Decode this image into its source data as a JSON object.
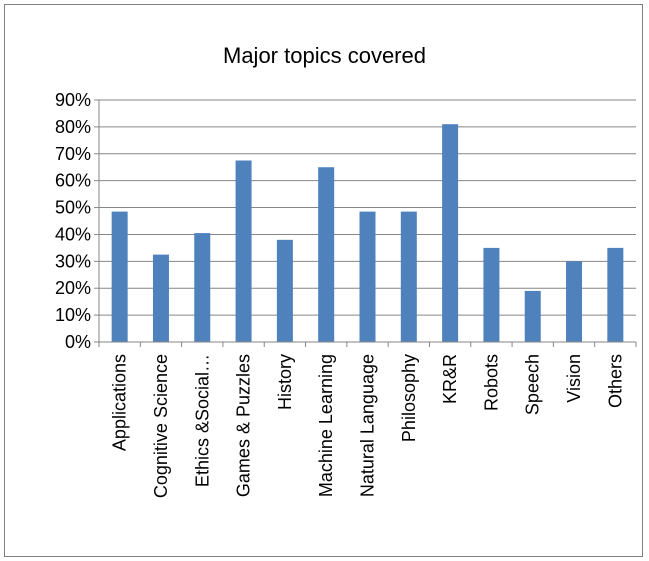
{
  "chart_data": {
    "type": "bar",
    "title": "Major topics covered",
    "categories": [
      "Applications",
      "Cognitive Science",
      "Ethics &Social…",
      "Games & Puzzles",
      "History",
      "Machine Learning",
      "Natural Language",
      "Philosophy",
      "KR&R",
      "Robots",
      "Speech",
      "Vision",
      "Others"
    ],
    "values": [
      48.5,
      32.5,
      40.5,
      67.5,
      38,
      65,
      48.5,
      48.5,
      81,
      35,
      19,
      30,
      35
    ],
    "ylim": [
      0,
      90
    ],
    "yticks": [
      "0%",
      "10%",
      "20%",
      "30%",
      "40%",
      "50%",
      "60%",
      "70%",
      "80%",
      "90%"
    ],
    "xlabel": "",
    "ylabel": "",
    "grid": true,
    "legend": "none",
    "colors": {
      "bar": "#4f81bd",
      "grid": "#868686",
      "axis": "#868686"
    }
  }
}
